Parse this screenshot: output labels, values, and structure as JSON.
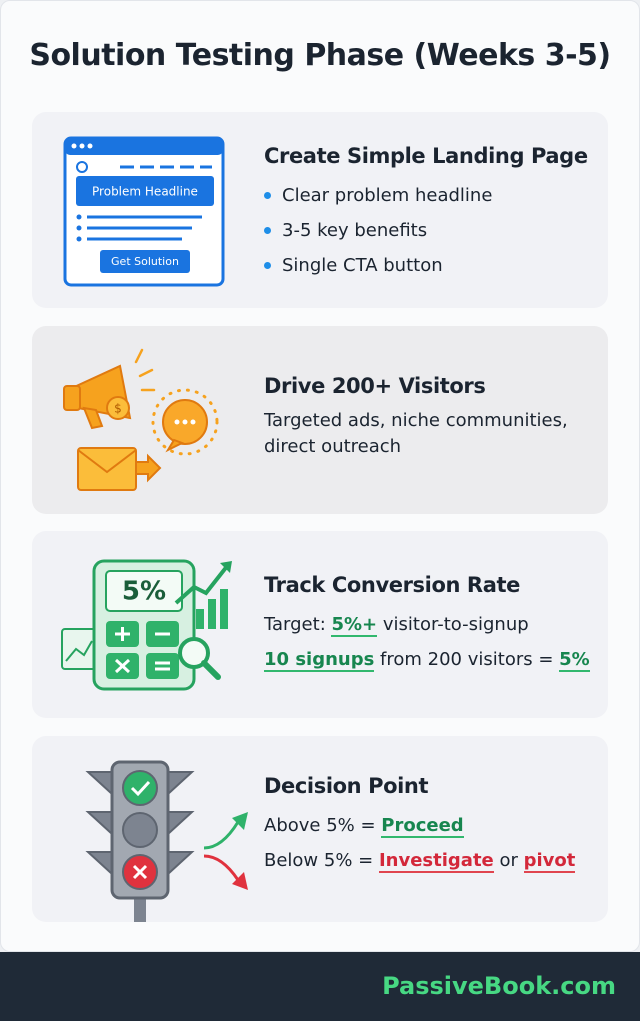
{
  "title": "Solution Testing Phase (Weeks 3-5)",
  "sections": [
    {
      "title": "Create Simple Landing Page",
      "bullets": [
        "Clear problem headline",
        "3-5 key benefits",
        "Single CTA button"
      ],
      "icon_labels": [
        "Problem Headline",
        "Get Solution"
      ]
    },
    {
      "title": "Drive 200+ Visitors",
      "lines": [
        "Targeted ads, niche communities,",
        "direct outreach"
      ]
    },
    {
      "title": "Track Conversion Rate",
      "icon_labels": [
        "5%"
      ],
      "rich_lines": [
        [
          {
            "text": "Target: "
          },
          {
            "text": "5%+",
            "mark": "green"
          },
          {
            "text": " visitor-to-signup"
          }
        ],
        [
          {
            "text": "10 signups",
            "mark": "green"
          },
          {
            "text": " from 200 visitors = "
          },
          {
            "text": "5%",
            "mark": "green"
          }
        ]
      ]
    },
    {
      "title": "Decision Point",
      "rich_lines": [
        [
          {
            "text": "Above 5% = "
          },
          {
            "text": "Proceed",
            "mark": "green"
          }
        ],
        [
          {
            "text": "Below 5% = "
          },
          {
            "text": "Investigate",
            "mark": "red"
          },
          {
            "text": " or "
          },
          {
            "text": "pivot",
            "mark": "red"
          }
        ]
      ]
    }
  ],
  "footer": "PassiveBook.com"
}
